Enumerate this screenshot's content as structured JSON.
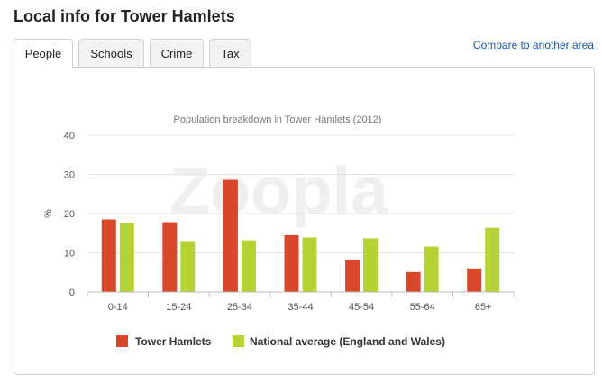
{
  "page": {
    "title": "Local info for Tower Hamlets"
  },
  "tabs": [
    {
      "label": "People",
      "active": true
    },
    {
      "label": "Schools",
      "active": false
    },
    {
      "label": "Crime",
      "active": false
    },
    {
      "label": "Tax",
      "active": false
    }
  ],
  "compare_link": "Compare to another area",
  "watermark": "Zoopla",
  "colors": {
    "tower_hamlets": "#d9472b",
    "national": "#b5d334"
  },
  "chart_data": {
    "type": "bar",
    "title": "Population breakdown in Tower Hamlets (2012)",
    "ylabel": "%",
    "xlabel": "",
    "categories": [
      "0-14",
      "15-24",
      "25-34",
      "35-44",
      "45-54",
      "55-64",
      "65+"
    ],
    "yticks": [
      0,
      10,
      20,
      30,
      40
    ],
    "ylim": [
      0,
      40
    ],
    "grid": true,
    "legend": "bottom",
    "series": [
      {
        "name": "Tower Hamlets",
        "values": [
          18.5,
          17.8,
          28.6,
          14.5,
          8.3,
          5.1,
          6.0
        ]
      },
      {
        "name": "National average (England and Wales)",
        "values": [
          17.5,
          13.0,
          13.2,
          13.9,
          13.7,
          11.6,
          16.4
        ]
      }
    ]
  }
}
